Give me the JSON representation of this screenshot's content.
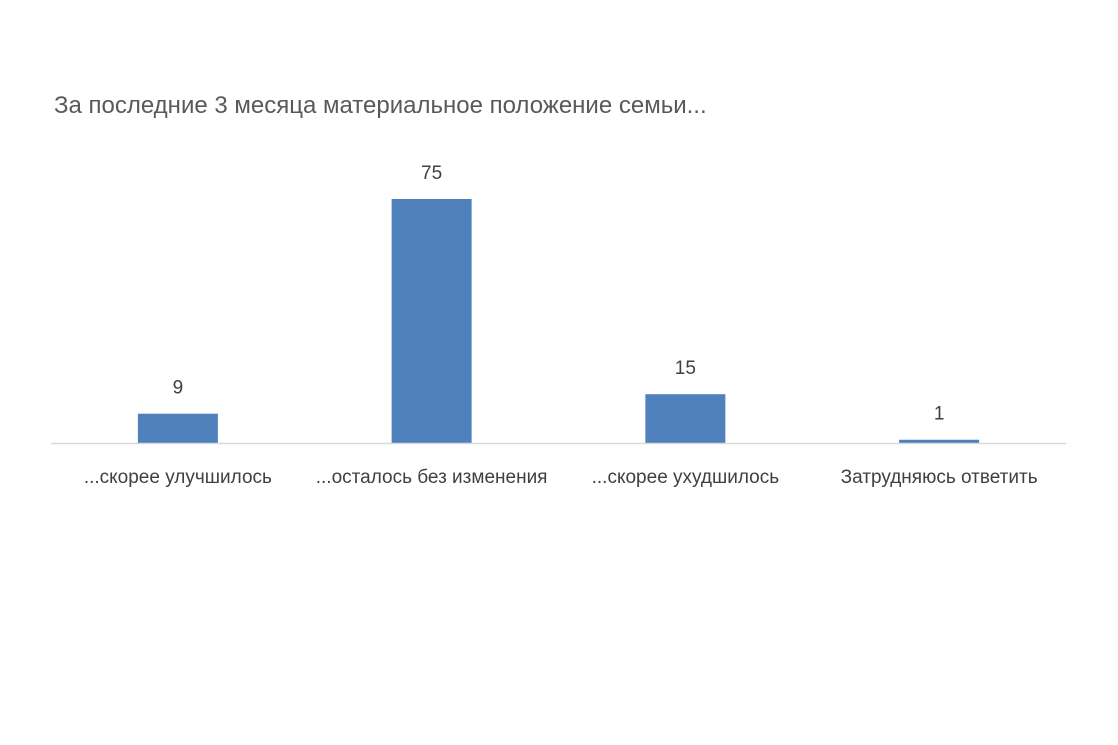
{
  "chart_data": {
    "type": "bar",
    "title": "За последние 3 месяца материальное положение семьи...",
    "categories": [
      "...скорее улучшилось",
      "...осталось без изменения",
      "...скорее ухудшилось",
      "Затрудняюсь ответить"
    ],
    "values": [
      9,
      75,
      15,
      1
    ],
    "data_labels": true,
    "grid": false,
    "legend": "none",
    "ylim": [
      0,
      75
    ],
    "bar_color": "#4F81BD",
    "axis_color": "#D9D9D9"
  }
}
